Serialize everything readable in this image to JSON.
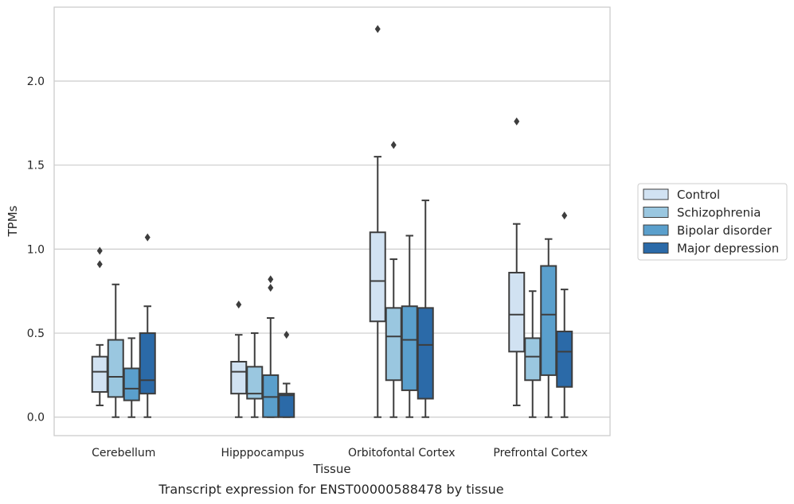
{
  "caption": "Transcript expression for ENST00000588478 by tissue",
  "chart_data": {
    "type": "boxplot",
    "xlabel": "Tissue",
    "ylabel": "TPMs",
    "ylim": [
      -0.11,
      2.44
    ],
    "yticks": [
      0.0,
      0.5,
      1.0,
      1.5,
      2.0
    ],
    "ytick_labels": [
      "0.0",
      "0.5",
      "1.0",
      "1.5",
      "2.0"
    ],
    "grid": "horizontal",
    "legend_position": "outside-right",
    "categories": [
      "Cerebellum",
      "Hipppocampus",
      "Orbitofontal Cortex",
      "Prefrontal Cortex"
    ],
    "series": [
      {
        "name": "Control",
        "color": "#d1e2f2",
        "boxes": [
          {
            "whislo": 0.07,
            "q1": 0.15,
            "med": 0.27,
            "q3": 0.36,
            "whishi": 0.43,
            "fliers": [
              0.91,
              0.99
            ]
          },
          {
            "whislo": 0.0,
            "q1": 0.14,
            "med": 0.27,
            "q3": 0.33,
            "whishi": 0.49,
            "fliers": [
              0.67
            ]
          },
          {
            "whislo": 0.0,
            "q1": 0.57,
            "med": 0.81,
            "q3": 1.1,
            "whishi": 1.55,
            "fliers": [
              2.31
            ]
          },
          {
            "whislo": 0.07,
            "q1": 0.39,
            "med": 0.61,
            "q3": 0.86,
            "whishi": 1.15,
            "fliers": [
              1.76
            ]
          }
        ]
      },
      {
        "name": "Schizophrenia",
        "color": "#9ac7e0",
        "boxes": [
          {
            "whislo": 0.0,
            "q1": 0.12,
            "med": 0.24,
            "q3": 0.46,
            "whishi": 0.79,
            "fliers": []
          },
          {
            "whislo": 0.0,
            "q1": 0.11,
            "med": 0.14,
            "q3": 0.3,
            "whishi": 0.5,
            "fliers": []
          },
          {
            "whislo": 0.0,
            "q1": 0.22,
            "med": 0.48,
            "q3": 0.65,
            "whishi": 0.94,
            "fliers": [
              1.62
            ]
          },
          {
            "whislo": 0.0,
            "q1": 0.22,
            "med": 0.36,
            "q3": 0.47,
            "whishi": 0.75,
            "fliers": []
          }
        ]
      },
      {
        "name": "Bipolar disorder",
        "color": "#5a9fcc",
        "boxes": [
          {
            "whislo": 0.0,
            "q1": 0.1,
            "med": 0.17,
            "q3": 0.29,
            "whishi": 0.47,
            "fliers": []
          },
          {
            "whislo": 0.0,
            "q1": 0.0,
            "med": 0.12,
            "q3": 0.25,
            "whishi": 0.59,
            "fliers": [
              0.77,
              0.82
            ]
          },
          {
            "whislo": 0.0,
            "q1": 0.16,
            "med": 0.46,
            "q3": 0.66,
            "whishi": 1.08,
            "fliers": []
          },
          {
            "whislo": 0.0,
            "q1": 0.25,
            "med": 0.61,
            "q3": 0.9,
            "whishi": 1.06,
            "fliers": []
          }
        ]
      },
      {
        "name": "Major depression",
        "color": "#2b6aa8",
        "boxes": [
          {
            "whislo": 0.0,
            "q1": 0.14,
            "med": 0.22,
            "q3": 0.5,
            "whishi": 0.66,
            "fliers": [
              1.07
            ]
          },
          {
            "whislo": 0.0,
            "q1": 0.0,
            "med": 0.13,
            "q3": 0.14,
            "whishi": 0.2,
            "fliers": [
              0.49
            ]
          },
          {
            "whislo": 0.0,
            "q1": 0.11,
            "med": 0.43,
            "q3": 0.65,
            "whishi": 1.29,
            "fliers": []
          },
          {
            "whislo": 0.0,
            "q1": 0.18,
            "med": 0.39,
            "q3": 0.51,
            "whishi": 0.76,
            "fliers": [
              1.2
            ]
          }
        ]
      }
    ]
  }
}
